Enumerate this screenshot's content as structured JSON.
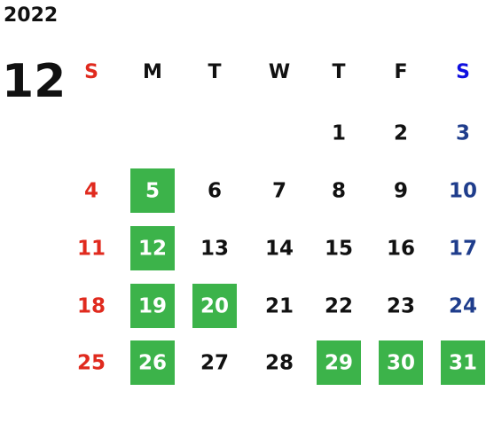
{
  "year": "2022",
  "month": "12",
  "weekdays": [
    "S",
    "M",
    "T",
    "W",
    "T",
    "F",
    "S"
  ],
  "weeks": [
    {
      "days": [
        null,
        null,
        null,
        null,
        "1",
        "2",
        "3"
      ],
      "highlighted": [
        false,
        false,
        false,
        false,
        false,
        false,
        false
      ]
    },
    {
      "days": [
        "4",
        "5",
        "6",
        "7",
        "8",
        "9",
        "10"
      ],
      "highlighted": [
        false,
        true,
        false,
        false,
        false,
        false,
        false
      ]
    },
    {
      "days": [
        "11",
        "12",
        "13",
        "14",
        "15",
        "16",
        "17"
      ],
      "highlighted": [
        false,
        true,
        false,
        false,
        false,
        false,
        false
      ]
    },
    {
      "days": [
        "18",
        "19",
        "20",
        "21",
        "22",
        "23",
        "24"
      ],
      "highlighted": [
        false,
        true,
        true,
        false,
        false,
        false,
        false
      ]
    },
    {
      "days": [
        "25",
        "26",
        "27",
        "28",
        "29",
        "30",
        "31"
      ],
      "highlighted": [
        false,
        true,
        false,
        false,
        true,
        true,
        true
      ]
    }
  ],
  "colors": {
    "text": "#111111",
    "sunday": "#e02a1e",
    "saturday_header": "#1010e0",
    "saturday": "#1f3d8c",
    "highlight": "#3cb34a",
    "highlight_text": "#ffffff"
  }
}
